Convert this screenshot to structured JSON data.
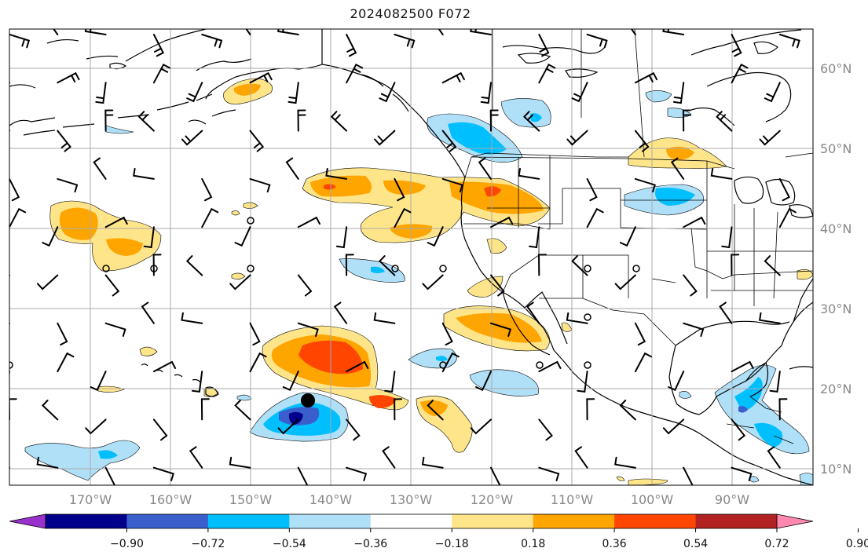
{
  "title": "2024082500 F072",
  "lat_labels": [
    "60°N",
    "50°N",
    "40°N",
    "30°N",
    "20°N",
    "10°N"
  ],
  "lon_labels": [
    "170°W",
    "160°W",
    "150°W",
    "140°W",
    "130°W",
    "120°W",
    "110°W",
    "100°W",
    "90°W"
  ],
  "colorbar": {
    "ticks": [
      "−0.90",
      "−0.72",
      "−0.54",
      "−0.36",
      "−0.18",
      "0.18",
      "0.36",
      "0.54",
      "0.72",
      "0.90"
    ],
    "colors": [
      "#9932CC",
      "#00008B",
      "#3A5FCD",
      "#00BFFF",
      "#B0E0F8",
      "#ffffff",
      "#FFE58A",
      "#FFA500",
      "#FF4500",
      "#B22222",
      "#FF88B0"
    ]
  },
  "fill_colors": {
    "light_yellow": "#FFE58A",
    "orange": "#FFA500",
    "red_orange": "#FF4500",
    "light_blue": "#B0E0F8",
    "sky_blue": "#00BFFF",
    "royal_blue": "#3A5FCD",
    "navy": "#00008B"
  },
  "storm_marker": {
    "lon": "142.6°W",
    "lat": "18.8°N"
  }
}
